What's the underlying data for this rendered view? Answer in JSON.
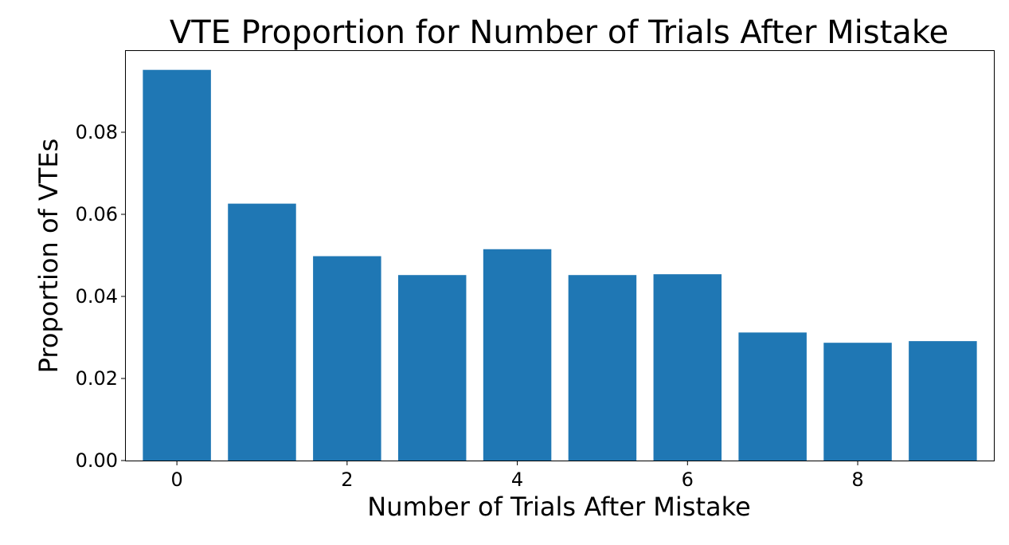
{
  "chart_data": {
    "type": "bar",
    "title": "VTE Proportion for Number of Trials After Mistake",
    "xlabel": "Number of Trials After Mistake",
    "ylabel": "Proportion of VTEs",
    "categories": [
      0,
      1,
      2,
      3,
      4,
      5,
      6,
      7,
      8,
      9
    ],
    "values": [
      0.0952,
      0.0626,
      0.0498,
      0.0452,
      0.0515,
      0.0452,
      0.0454,
      0.0312,
      0.0287,
      0.0291
    ],
    "xlim": [
      -0.6,
      9.6
    ],
    "ylim": [
      0,
      0.0998
    ],
    "xticks": [
      0,
      2,
      4,
      6,
      8
    ],
    "xtick_labels": [
      "0",
      "2",
      "4",
      "6",
      "8"
    ],
    "yticks": [
      0,
      0.02,
      0.04,
      0.06,
      0.08
    ],
    "ytick_labels": [
      "0.00",
      "0.02",
      "0.04",
      "0.06",
      "0.08"
    ],
    "bar_color": "#1f77b4",
    "grid": false,
    "legend": "none"
  }
}
